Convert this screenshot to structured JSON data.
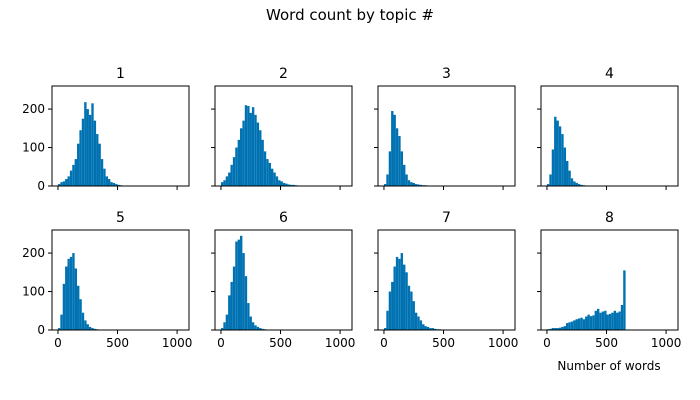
{
  "chart_data": {
    "type": "bar",
    "title": "Word count by topic #",
    "xlabel": "Number of words",
    "bar_color": "#0072B2",
    "xlim": [
      -50,
      1100
    ],
    "ylim": [
      0,
      260
    ],
    "x_ticks": [
      0,
      500,
      1000
    ],
    "y_ticks": [
      0,
      100,
      200
    ],
    "bin_width": 20,
    "sharex": true,
    "sharey": true,
    "panels": [
      {
        "title": "1",
        "bin_start": 0,
        "values": [
          5,
          10,
          12,
          18,
          25,
          40,
          55,
          70,
          110,
          145,
          175,
          218,
          200,
          185,
          215,
          170,
          135,
          110,
          70,
          45,
          25,
          18,
          10,
          8,
          5,
          3,
          2,
          1,
          1,
          1
        ]
      },
      {
        "title": "2",
        "bin_start": 0,
        "values": [
          10,
          15,
          25,
          35,
          55,
          75,
          100,
          120,
          150,
          170,
          210,
          208,
          190,
          205,
          185,
          165,
          145,
          120,
          90,
          70,
          60,
          45,
          35,
          25,
          15,
          12,
          8,
          6,
          4,
          3,
          3,
          2,
          1
        ]
      },
      {
        "title": "3",
        "bin_start": 0,
        "values": [
          5,
          30,
          90,
          195,
          185,
          150,
          130,
          90,
          55,
          30,
          15,
          10,
          8,
          5,
          4,
          3,
          2,
          2,
          1,
          1
        ]
      },
      {
        "title": "4",
        "bin_start": 0,
        "values": [
          5,
          30,
          95,
          180,
          170,
          155,
          135,
          100,
          65,
          40,
          20,
          12,
          8,
          5,
          3,
          2,
          1,
          1
        ]
      },
      {
        "title": "5",
        "bin_start": 0,
        "values": [
          5,
          40,
          120,
          165,
          185,
          190,
          200,
          160,
          115,
          80,
          45,
          25,
          15,
          8,
          5,
          3,
          2,
          1
        ]
      },
      {
        "title": "6",
        "bin_start": 0,
        "values": [
          5,
          20,
          40,
          90,
          125,
          165,
          230,
          235,
          245,
          200,
          140,
          70,
          35,
          20,
          12,
          8,
          5,
          3,
          2,
          1,
          1
        ]
      },
      {
        "title": "7",
        "bin_start": 0,
        "values": [
          5,
          50,
          100,
          125,
          165,
          190,
          185,
          200,
          170,
          150,
          115,
          100,
          75,
          45,
          35,
          25,
          15,
          10,
          8,
          5,
          5,
          3,
          2,
          2,
          1,
          1
        ]
      },
      {
        "title": "8",
        "bin_start": 0,
        "values": [
          2,
          3,
          5,
          5,
          5,
          6,
          8,
          10,
          18,
          20,
          22,
          25,
          28,
          30,
          32,
          28,
          35,
          40,
          36,
          38,
          50,
          55,
          45,
          48,
          50,
          40,
          42,
          45,
          50,
          45,
          48,
          65,
          155
        ]
      }
    ]
  }
}
